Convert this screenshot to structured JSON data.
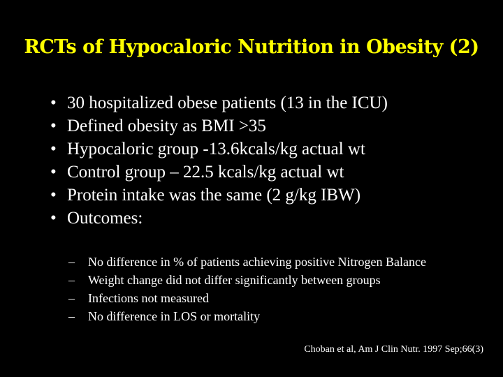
{
  "title": "RCTs of Hypocaloric Nutrition in Obesity (2)",
  "bullets": [
    "30 hospitalized obese patients (13 in the ICU)",
    "Defined obesity as BMI >35",
    "Hypocaloric group -13.6kcals/kg actual wt",
    "Control group – 22.5 kcals/kg actual wt",
    "Protein intake was the same (2 g/kg IBW)",
    "Outcomes:"
  ],
  "sub_bullets": [
    "No difference in % of patients achieving positive Nitrogen Balance",
    "Weight change did not differ significantly between groups",
    "Infections not measured",
    "No difference in LOS or mortality"
  ],
  "citation": "Choban et al, Am J Clin Nutr. 1997 Sep;66(3)"
}
